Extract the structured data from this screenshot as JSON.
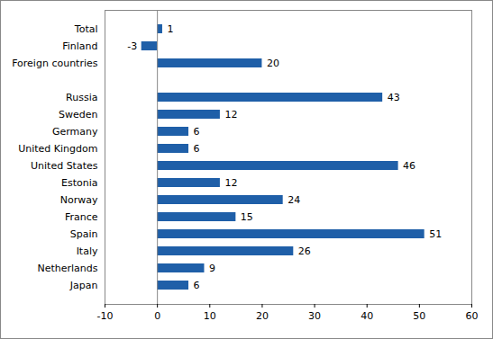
{
  "chart_data": {
    "type": "bar",
    "orientation": "horizontal",
    "categories": [
      "Total",
      "Finland",
      "Foreign countries",
      null,
      "Russia",
      "Sweden",
      "Germany",
      "United Kingdom",
      "United States",
      "Estonia",
      "Norway",
      "France",
      "Spain",
      "Italy",
      "Netherlands",
      "Japan"
    ],
    "values": [
      1,
      -3,
      20,
      null,
      43,
      12,
      6,
      6,
      46,
      12,
      24,
      15,
      51,
      26,
      9,
      6
    ],
    "color": "#1f5fa8",
    "xlim": [
      -10,
      60
    ],
    "xticks": [
      -10,
      0,
      10,
      20,
      30,
      40,
      50,
      60
    ],
    "grid": false,
    "data_labels": true
  }
}
